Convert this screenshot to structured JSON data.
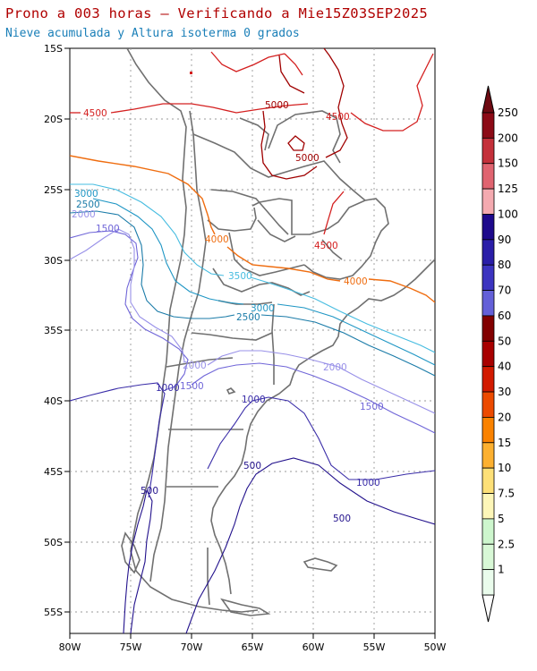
{
  "header": {
    "title": "Prono a 003 horas — Verificando a Mie15Z03SEP2025",
    "subtitle": "Nieve acumulada y Altura isoterma 0 grados"
  },
  "map": {
    "lat_labels": [
      "15S",
      "20S",
      "25S",
      "30S",
      "35S",
      "40S",
      "45S",
      "50S",
      "55S"
    ],
    "lon_labels": [
      "80W",
      "75W",
      "70W",
      "65W",
      "60W",
      "55W",
      "50W"
    ],
    "contour_labels": {
      "c4500": "4500",
      "c5000": "5000",
      "c4000": "4000",
      "c3500": "3500",
      "c3000": "3000",
      "c2500": "2500",
      "c2000": "2000",
      "c1500": "1500",
      "c1000": "1000",
      "c500": "500"
    },
    "contour_colors": {
      "5000": "#a00000",
      "4500": "#d42020",
      "4000": "#ef6d10",
      "3500": "#46bce0",
      "3000": "#1f96c4",
      "2500": "#1a7ba8",
      "2000": "#9890e8",
      "1500": "#7066d8",
      "1000": "#3a2da8",
      "500": "#22118c"
    }
  },
  "colorbar": {
    "labels": [
      "250",
      "200",
      "150",
      "125",
      "100",
      "90",
      "80",
      "70",
      "60",
      "50",
      "40",
      "30",
      "20",
      "15",
      "10",
      "7.5",
      "5",
      "2.5",
      "1"
    ],
    "colors": [
      "#8c0a16",
      "#c4303a",
      "#e06470",
      "#f4aab0",
      "#1e0a8c",
      "#2a1ea8",
      "#3c34c0",
      "#6460d8",
      "#820000",
      "#a80000",
      "#d21a00",
      "#ec4a00",
      "#fa8200",
      "#fcb030",
      "#fde078",
      "#fdf6b8",
      "#cdf6cd",
      "#d8f8d6",
      "#eafcec"
    ]
  }
}
